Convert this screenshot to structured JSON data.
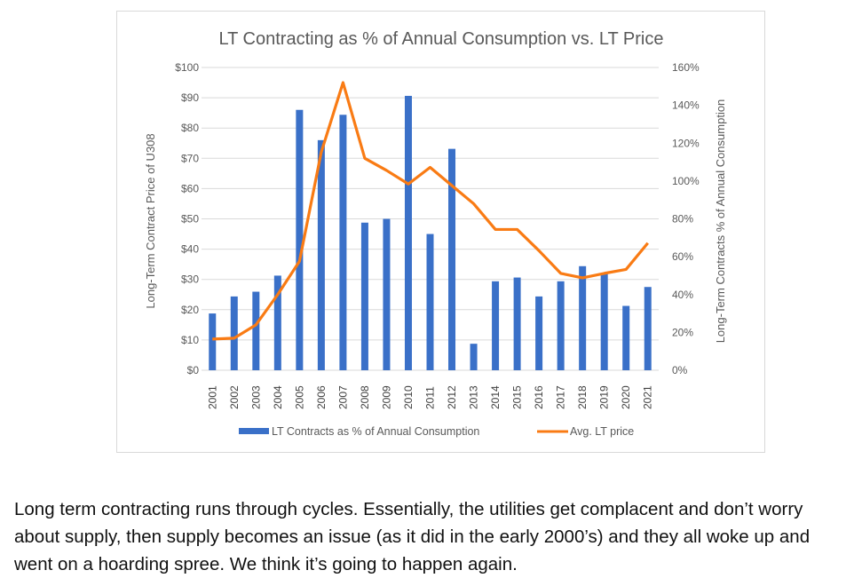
{
  "chart_data": {
    "type": "bar+line",
    "title": "LT Contracting as % of Annual Consumption vs. LT Price",
    "ylabel_left": "Long-Term Contract Price of U308",
    "ylabel_right": "Long-Term Contracts  % of Annual Consumption",
    "ylim_left": [
      0,
      100
    ],
    "ylim_right": [
      0,
      160
    ],
    "yticks_left": [
      "$0",
      "$10",
      "$20",
      "$30",
      "$40",
      "$50",
      "$60",
      "$70",
      "$80",
      "$90",
      "$100"
    ],
    "yticks_right": [
      "0%",
      "20%",
      "40%",
      "60%",
      "80%",
      "100%",
      "120%",
      "140%",
      "160%"
    ],
    "categories": [
      "2001",
      "2002",
      "2003",
      "2004",
      "2005",
      "2006",
      "2007",
      "2008",
      "2009",
      "2010",
      "2011",
      "2012",
      "2013",
      "2014",
      "2015",
      "2016",
      "2017",
      "2018",
      "2019",
      "2020",
      "2021"
    ],
    "series": [
      {
        "name": "LT Contracts  as % of Annual Consumption",
        "type": "bar",
        "axis": "right",
        "color": "#3a70c8",
        "values": [
          30,
          39,
          41.5,
          50,
          137.6,
          121.6,
          135,
          78,
          80,
          145,
          72,
          117,
          14,
          47,
          49,
          39,
          47,
          55,
          51,
          34,
          44
        ]
      },
      {
        "name": "Avg. LT price",
        "type": "line",
        "axis": "left",
        "color": "#f97b14",
        "values": [
          10.3,
          10.6,
          15,
          25,
          36,
          72,
          95,
          70,
          66,
          61.5,
          67,
          61,
          55,
          46.5,
          46.5,
          39.5,
          32,
          30.5,
          32,
          33.3,
          42
        ]
      }
    ],
    "grid": true,
    "legend": "bottom"
  },
  "caption": "Long term contracting runs through cycles. Essentially, the utilities get complacent and don’t worry about supply, then supply becomes an issue (as it did in the early 2000’s) and they all woke up and went on a hoarding spree. We think it’s going to happen again."
}
